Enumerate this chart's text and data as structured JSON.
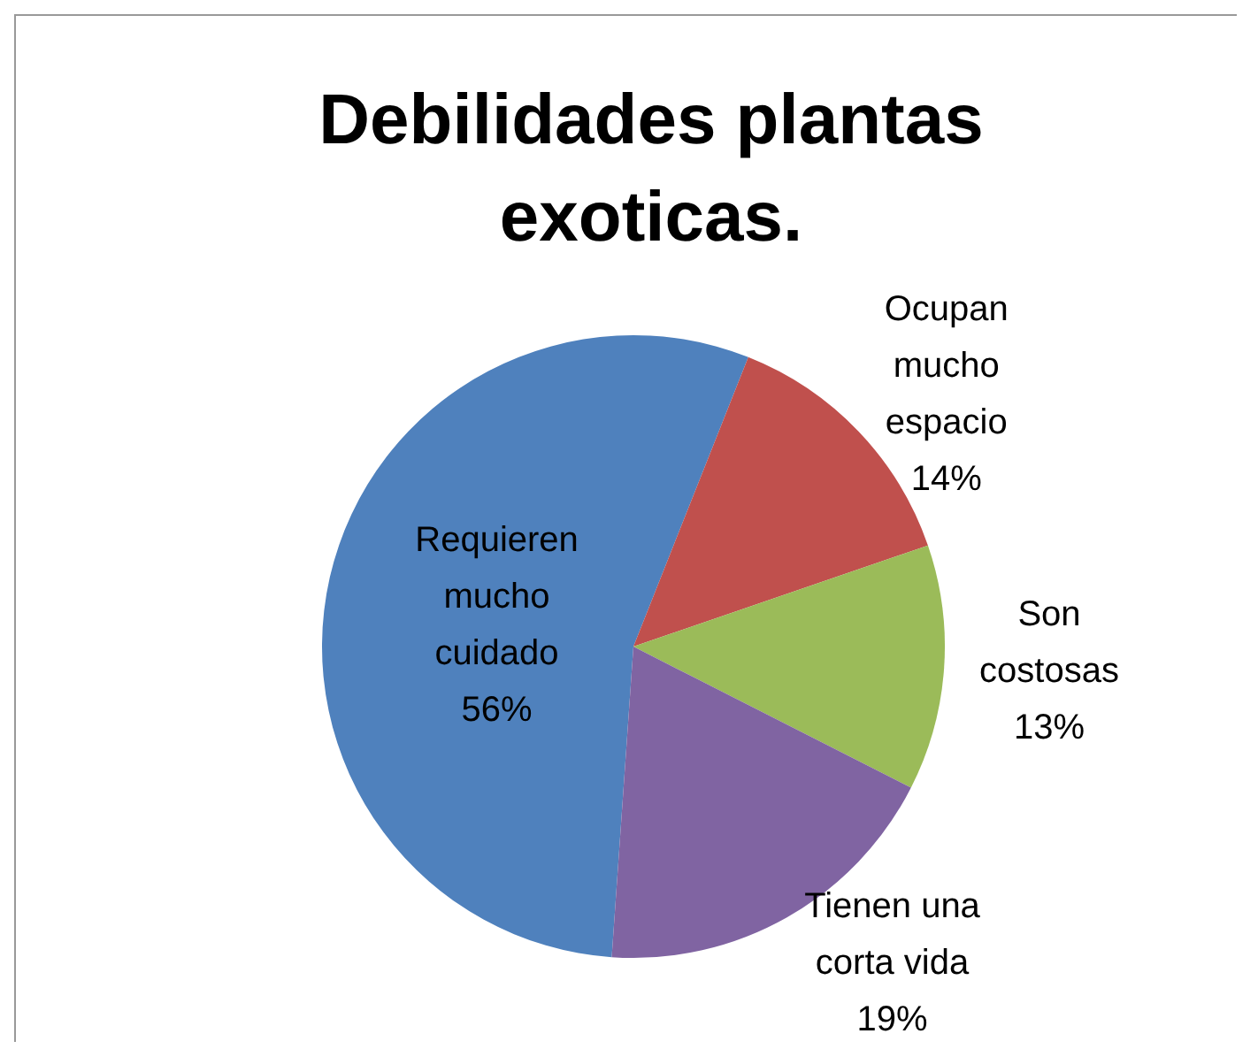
{
  "chart_data": {
    "type": "pie",
    "title": "Debilidades plantas exoticas.",
    "categories": [
      "Requieren mucho cuidado",
      "Ocupan mucho espacio",
      "Son costosas",
      "Tienen una corta vida"
    ],
    "values": [
      56,
      14,
      13,
      19
    ],
    "colors": [
      "#4f81bd",
      "#c0504d",
      "#9bbb59",
      "#8064a2"
    ],
    "value_labels": [
      "56%",
      "14%",
      "13%",
      "19%"
    ],
    "legend": false
  }
}
